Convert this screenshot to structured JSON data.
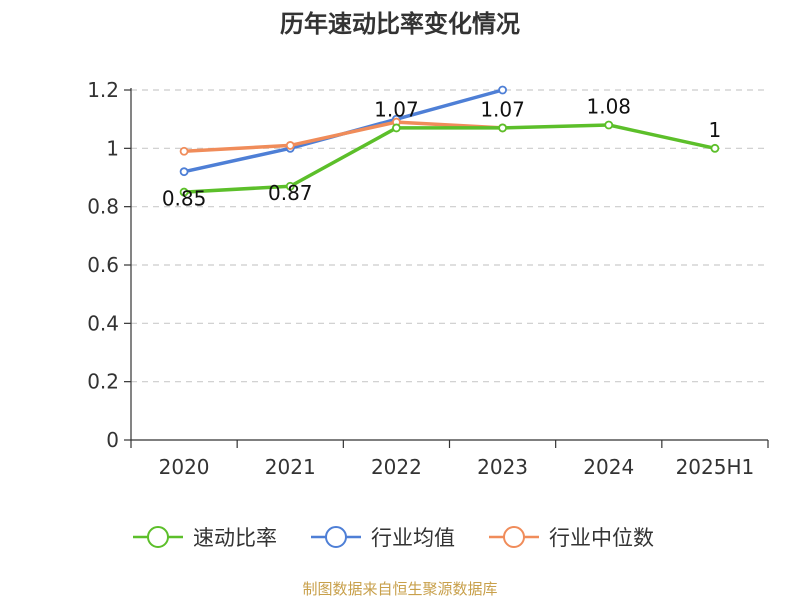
{
  "chart_data": {
    "type": "line",
    "title": "历年速动比率变化情况",
    "categories": [
      "2020",
      "2021",
      "2022",
      "2023",
      "2024",
      "2025H1"
    ],
    "ylim": [
      0,
      1.2
    ],
    "yticks": [
      "0",
      "0.2",
      "0.4",
      "0.6",
      "0.8",
      "1",
      "1.2"
    ],
    "grid": true,
    "legend_position": "bottom",
    "series": [
      {
        "name": "速动比率",
        "color": "#5cbf2a",
        "values": [
          0.85,
          0.87,
          1.07,
          1.07,
          1.08,
          1
        ],
        "labels": [
          "0.85",
          "0.87",
          "1.07",
          "1.07",
          "1.08",
          "1"
        ]
      },
      {
        "name": "行业均值",
        "color": "#4e7fd6",
        "values": [
          0.92,
          1.0,
          1.1,
          1.2,
          null,
          null
        ]
      },
      {
        "name": "行业中位数",
        "color": "#f08c5a",
        "values": [
          0.99,
          1.01,
          1.09,
          1.07,
          null,
          null
        ]
      }
    ]
  },
  "footer": "制图数据来自恒生聚源数据库"
}
